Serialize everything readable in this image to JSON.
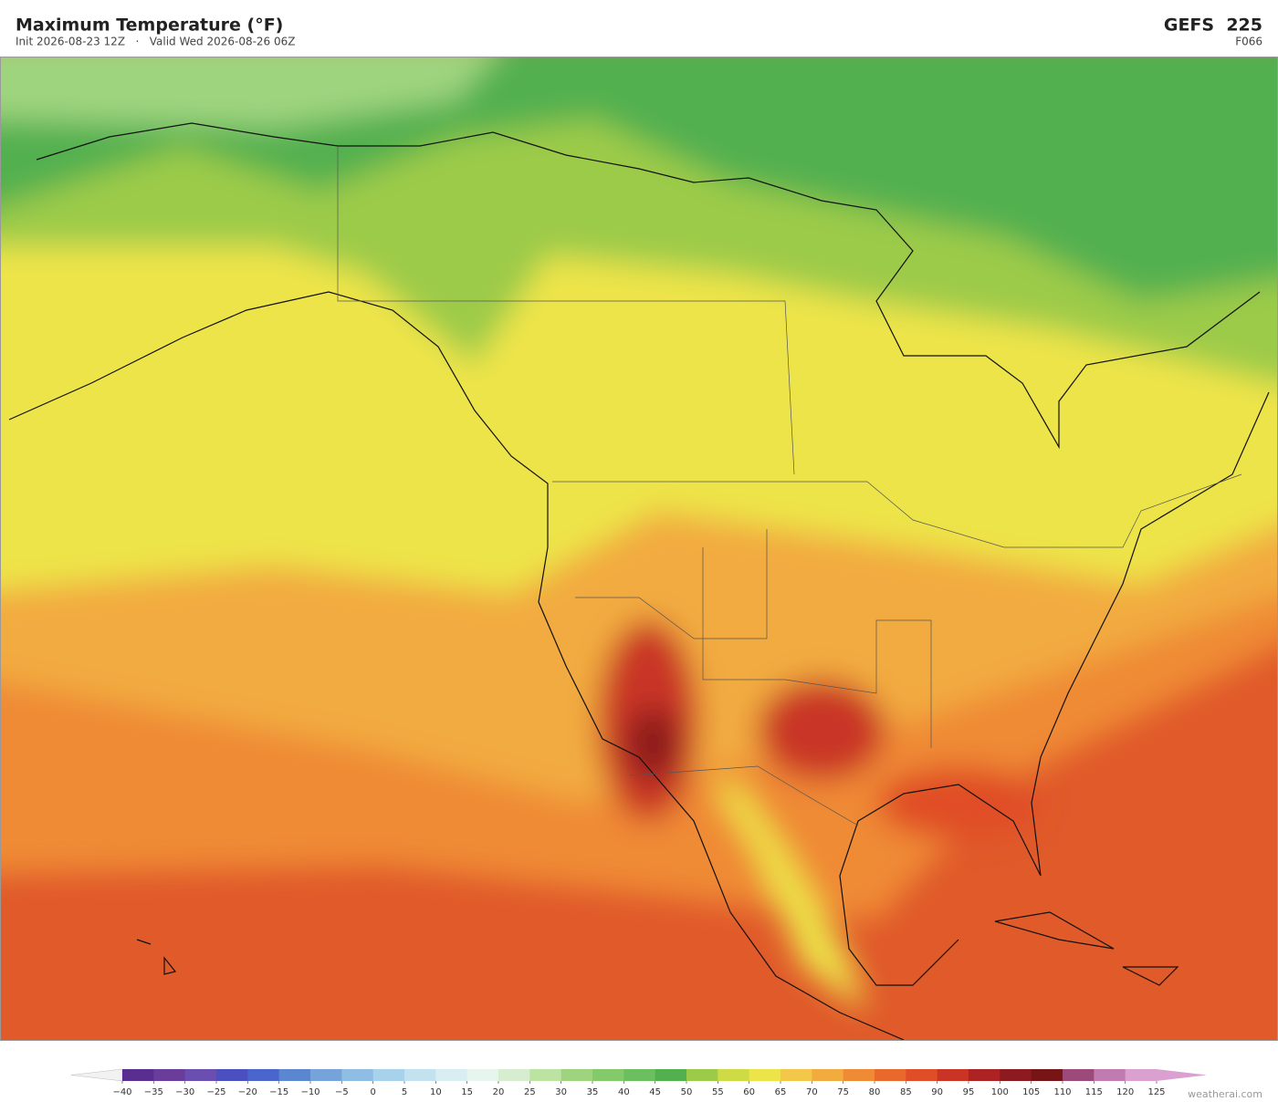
{
  "header": {
    "title": "Maximum Temperature  (°F)",
    "subtitle": "Init 2026-08-23 12Z   ·   Valid Wed 2026-08-26 06Z",
    "model": "GEFS  225",
    "forecast_hour": "F066"
  },
  "colorbar": {
    "ticks": [
      {
        "value": -40,
        "label": "−40"
      },
      {
        "value": -35,
        "label": "−35"
      },
      {
        "value": -30,
        "label": "−30"
      },
      {
        "value": -25,
        "label": "−25"
      },
      {
        "value": -20,
        "label": "−20"
      },
      {
        "value": -15,
        "label": "−15"
      },
      {
        "value": -10,
        "label": "−10"
      },
      {
        "value": -5,
        "label": "−5"
      },
      0,
      5,
      10,
      15,
      20,
      25,
      30,
      35,
      40,
      45,
      50,
      55,
      60,
      65,
      70,
      75,
      80,
      85,
      90,
      95,
      100,
      105,
      110,
      115,
      120,
      125
    ],
    "colors": [
      "#5a2d91",
      "#6a3d9a",
      "#6b4fb0",
      "#4b50c0",
      "#4a66cc",
      "#5b86d0",
      "#76a3d9",
      "#8fbde3",
      "#a8d2ec",
      "#c2e2f0",
      "#d9eef3",
      "#e6f5ee",
      "#d6eecf",
      "#bde3a3",
      "#9fd47f",
      "#84c96a",
      "#6cbf5e",
      "#52b04f",
      "#9ccb4a",
      "#cfdb44",
      "#ede44a",
      "#f3c84a",
      "#f2ab3f",
      "#ef8a35",
      "#e9692c",
      "#e04e28",
      "#c93425",
      "#ad2323",
      "#8c1a1e",
      "#771416",
      "#9b4a7a",
      "#c27bb0",
      "#d9a0d0"
    ],
    "under_color": "#f2f2f2",
    "over_color": "#d9a0d0"
  },
  "watermark": "weatherai.com"
}
